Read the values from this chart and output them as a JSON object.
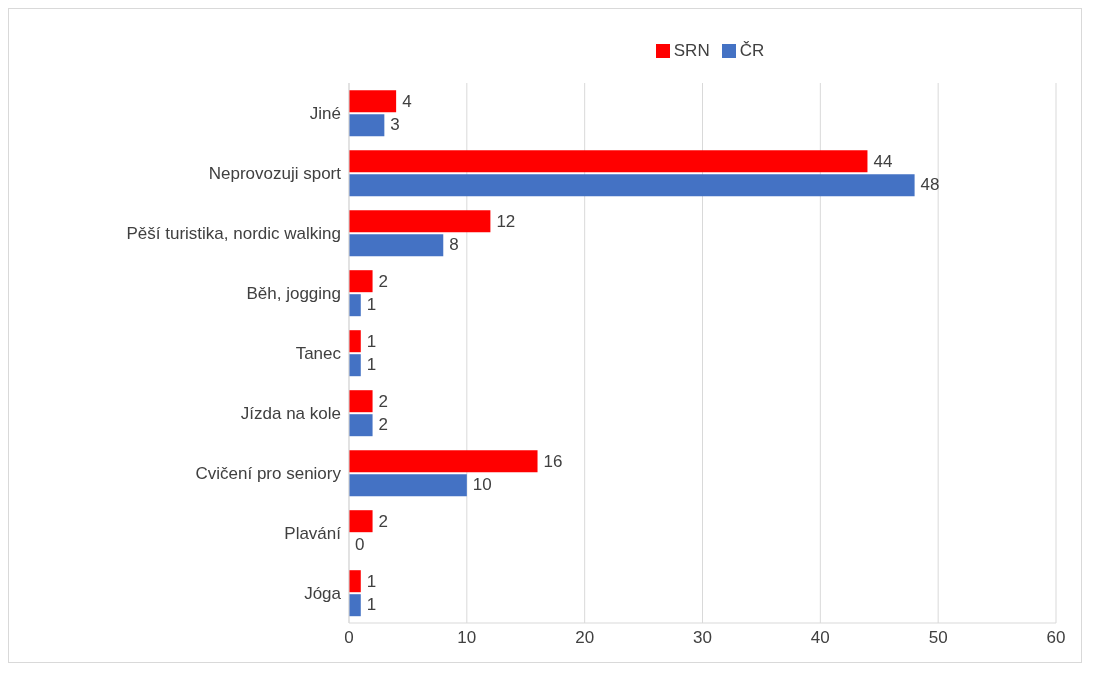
{
  "chart_data": {
    "type": "bar",
    "orientation": "horizontal",
    "categories": [
      "Jiné",
      "Neprovozuji sport",
      "Pěší turistika, nordic walking",
      "Běh, jogging",
      "Tanec",
      "Jízda na kole",
      "Cvičení pro seniory",
      "Plavání",
      "Jóga"
    ],
    "series": [
      {
        "name": "SRN",
        "color": "#ff0000",
        "values": [
          4,
          44,
          12,
          2,
          1,
          2,
          16,
          2,
          1
        ]
      },
      {
        "name": "ČR",
        "color": "#4472c4",
        "values": [
          3,
          48,
          8,
          1,
          1,
          2,
          10,
          0,
          1
        ]
      }
    ],
    "xlim": [
      0,
      60
    ],
    "xticks": [
      0,
      10,
      20,
      30,
      40,
      50,
      60
    ],
    "grid": "x",
    "legend": "top",
    "data_labels": true
  }
}
